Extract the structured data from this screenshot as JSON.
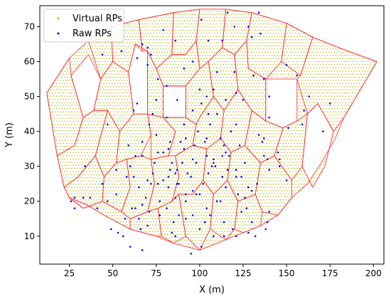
{
  "chart_data": {
    "type": "scatter",
    "xlabel": "X (m)",
    "ylabel": "Y (m)",
    "xlim": [
      8,
      206
    ],
    "ylim": [
      2,
      76
    ],
    "xticks": [
      25,
      50,
      75,
      100,
      125,
      150,
      175,
      200
    ],
    "yticks": [
      10,
      20,
      30,
      40,
      50,
      60,
      70
    ],
    "grid": false,
    "legend": {
      "placement": "top-left"
    },
    "series": [
      {
        "name": "Virtual RPs",
        "marker": "dot",
        "color": "#bcbd22",
        "row_spacing": 0.9,
        "column_spacing": 1.6
      },
      {
        "name": "Raw RPs",
        "marker": "dot",
        "color": "#0000ff",
        "points": [
          [
            67,
            65
          ],
          [
            70,
            64
          ],
          [
            72,
            62
          ],
          [
            79,
            69
          ],
          [
            86,
            66
          ],
          [
            101,
            72
          ],
          [
            105,
            66
          ],
          [
            116,
            74
          ],
          [
            128,
            70
          ],
          [
            130,
            67
          ],
          [
            135,
            68
          ],
          [
            44,
            62
          ],
          [
            55,
            63
          ],
          [
            64,
            61
          ],
          [
            62,
            46
          ],
          [
            100,
            52
          ],
          [
            101,
            48
          ],
          [
            104,
            50
          ],
          [
            108,
            52
          ],
          [
            110,
            45
          ],
          [
            115,
            49
          ],
          [
            121,
            51
          ],
          [
            125,
            49
          ],
          [
            140,
            50
          ],
          [
            75,
            49
          ],
          [
            87,
            49
          ],
          [
            118,
            40
          ],
          [
            121,
            42
          ],
          [
            123,
            36
          ],
          [
            103,
            37
          ],
          [
            106,
            42
          ],
          [
            112,
            38
          ],
          [
            113,
            33
          ],
          [
            105,
            28
          ],
          [
            107,
            30
          ],
          [
            108,
            32
          ],
          [
            109,
            30
          ],
          [
            108,
            31
          ],
          [
            91,
            35
          ],
          [
            96,
            32
          ],
          [
            95,
            27
          ],
          [
            86,
            28
          ],
          [
            82,
            27
          ],
          [
            88,
            25
          ],
          [
            92,
            22
          ],
          [
            96,
            23
          ],
          [
            98,
            22
          ],
          [
            92,
            20
          ],
          [
            96,
            16
          ],
          [
            100,
            12
          ],
          [
            101,
            7
          ],
          [
            95,
            5
          ],
          [
            85,
            14
          ],
          [
            86,
            10
          ],
          [
            84,
            11
          ],
          [
            77,
            16
          ],
          [
            71,
            17
          ],
          [
            70,
            13
          ],
          [
            66,
            12
          ],
          [
            63,
            18
          ],
          [
            70,
            26
          ],
          [
            73,
            28
          ],
          [
            62,
            27
          ],
          [
            65,
            24
          ],
          [
            60,
            30
          ],
          [
            63,
            33
          ],
          [
            67,
            33
          ],
          [
            67,
            37
          ],
          [
            71,
            42
          ],
          [
            75,
            39
          ],
          [
            76,
            34
          ],
          [
            74,
            31
          ],
          [
            83,
            29
          ],
          [
            87,
            29
          ],
          [
            87,
            25
          ],
          [
            90,
            31
          ],
          [
            82,
            35
          ],
          [
            83,
            37
          ],
          [
            79,
            34
          ],
          [
            92,
            38
          ],
          [
            97,
            36
          ],
          [
            104,
            38
          ],
          [
            115,
            34
          ],
          [
            114,
            36
          ],
          [
            121,
            29
          ],
          [
            126,
            31
          ],
          [
            124,
            27
          ],
          [
            121,
            27
          ],
          [
            128,
            24
          ],
          [
            130,
            23
          ],
          [
            133,
            25
          ],
          [
            127,
            18
          ],
          [
            124,
            17
          ],
          [
            130,
            14
          ],
          [
            121,
            10
          ],
          [
            114,
            14
          ],
          [
            119,
            12
          ],
          [
            112,
            20
          ],
          [
            110,
            20
          ],
          [
            106,
            16
          ],
          [
            104,
            18
          ],
          [
            100,
            22
          ],
          [
            102,
            25
          ],
          [
            116,
            29
          ],
          [
            115,
            24
          ],
          [
            137,
            33
          ],
          [
            140,
            29
          ],
          [
            146,
            30
          ],
          [
            140,
            17
          ],
          [
            139,
            14
          ],
          [
            145,
            34
          ],
          [
            47,
            20
          ],
          [
            41,
            18
          ],
          [
            37,
            21
          ],
          [
            33,
            21
          ],
          [
            28,
            21
          ],
          [
            26,
            20
          ],
          [
            28,
            18
          ],
          [
            44,
            25
          ],
          [
            34,
            30
          ],
          [
            49,
            12
          ],
          [
            56,
            10
          ],
          [
            81,
            18
          ],
          [
            77,
            20
          ],
          [
            88,
            16
          ],
          [
            92,
            15
          ],
          [
            103,
            14
          ],
          [
            108,
            10
          ],
          [
            114,
            10
          ],
          [
            128,
            11
          ],
          [
            132,
            10
          ],
          [
            138,
            12
          ],
          [
            89,
            37
          ],
          [
            84,
            31
          ],
          [
            59,
            36
          ],
          [
            58,
            27
          ],
          [
            52,
            22
          ],
          [
            57,
            15
          ],
          [
            61,
            18
          ],
          [
            47,
            42
          ],
          [
            52,
            29
          ],
          [
            91,
            42
          ],
          [
            96,
            46
          ],
          [
            105,
            45
          ],
          [
            99,
            40
          ],
          [
            134,
            39
          ],
          [
            137,
            38
          ],
          [
            159,
            42
          ],
          [
            151,
            41
          ],
          [
            140,
            44
          ],
          [
            136,
            37
          ],
          [
            139,
            32
          ],
          [
            146,
            32
          ],
          [
            150,
            26
          ],
          [
            126,
            21
          ],
          [
            122,
            22
          ],
          [
            113,
            27
          ],
          [
            117,
            33
          ],
          [
            93,
            28
          ],
          [
            104,
            33
          ],
          [
            98,
            31
          ],
          [
            86,
            21
          ],
          [
            82,
            24
          ],
          [
            79,
            26
          ],
          [
            76,
            25
          ],
          [
            72,
            25
          ],
          [
            69,
            21
          ],
          [
            67,
            19
          ],
          [
            65,
            15
          ],
          [
            67,
            6
          ],
          [
            60,
            7
          ],
          [
            53,
            11
          ],
          [
            73,
            45
          ],
          [
            81,
            44
          ],
          [
            64,
            48
          ],
          [
            70,
            59
          ],
          [
            76,
            55
          ],
          [
            81,
            53
          ],
          [
            91,
            58
          ],
          [
            96,
            60
          ],
          [
            110,
            57
          ],
          [
            120,
            57
          ],
          [
            131,
            56
          ],
          [
            137,
            55
          ],
          [
            150,
            59
          ],
          [
            156,
            56
          ],
          [
            175,
            48
          ],
          [
            113,
            66
          ],
          [
            120,
            70
          ],
          [
            134,
            74
          ],
          [
            163,
            50
          ],
          [
            160,
            46
          ],
          [
            171,
            40
          ]
        ]
      }
    ]
  }
}
